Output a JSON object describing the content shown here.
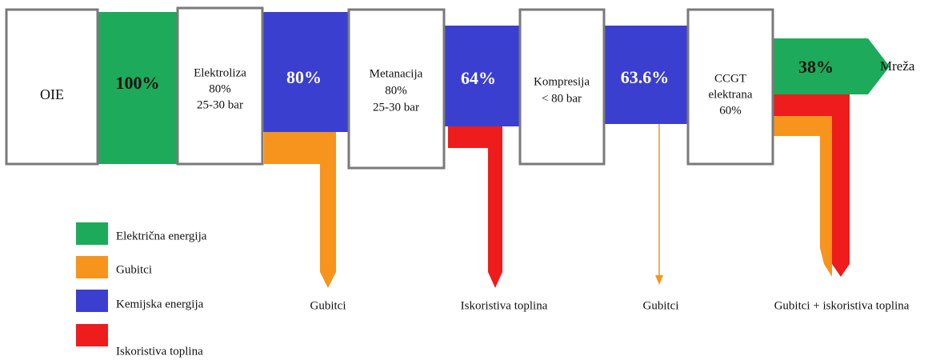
{
  "boxes": [
    {
      "lines": [
        "OIE"
      ]
    },
    {
      "lines": [
        "Elektroliza",
        "80%",
        "25-30  bar"
      ]
    },
    {
      "lines": [
        "Metanacija",
        "80%",
        "25-30  bar"
      ]
    },
    {
      "lines": [
        "Kompresija",
        "< 80 bar"
      ]
    },
    {
      "lines": [
        "CCGT",
        "elektrana",
        "60%"
      ]
    }
  ],
  "flows": [
    "100%",
    "80%",
    "64%",
    "63.6%",
    "38%"
  ],
  "output": "Mreža",
  "losses": [
    "Gubitci",
    "Iskoristiva toplina",
    "Gubitci",
    "Gubitci + iskoristiva toplina"
  ],
  "legend": [
    "Električna  energija",
    "Gubitci",
    "Kemijska  energija",
    "Iskoristiva toplina"
  ]
}
